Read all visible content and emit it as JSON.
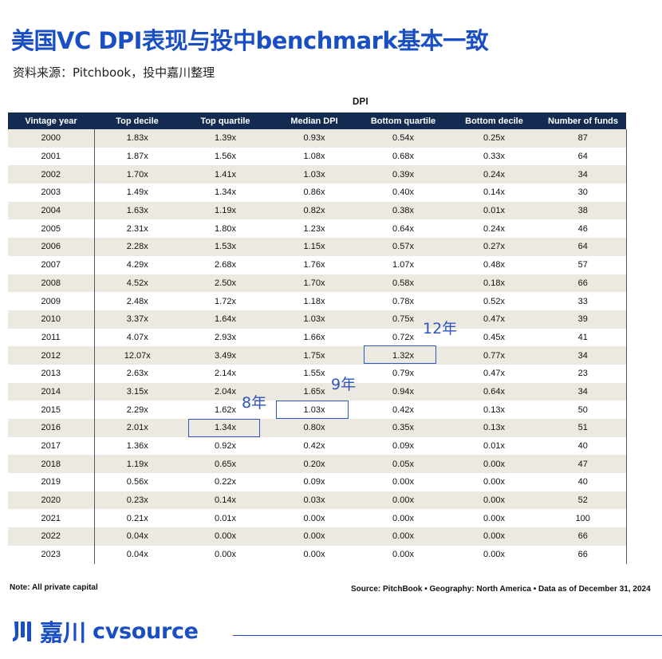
{
  "title": "美国VC DPI表现与投中benchmark基本一致",
  "subtitle": "资料来源：Pitchbook，投中嘉川整理",
  "table": {
    "caption": "DPI",
    "headers": [
      "Vintage year",
      "Top decile",
      "Top quartile",
      "Median DPI",
      "Bottom quartile",
      "Bottom decile",
      "Number of funds"
    ],
    "rows": [
      [
        "2000",
        "1.83x",
        "1.39x",
        "0.93x",
        "0.54x",
        "0.25x",
        "87"
      ],
      [
        "2001",
        "1.87x",
        "1.56x",
        "1.08x",
        "0.68x",
        "0.33x",
        "64"
      ],
      [
        "2002",
        "1.70x",
        "1.41x",
        "1.03x",
        "0.39x",
        "0.24x",
        "34"
      ],
      [
        "2003",
        "1.49x",
        "1.34x",
        "0.86x",
        "0.40x",
        "0.14x",
        "30"
      ],
      [
        "2004",
        "1.63x",
        "1.19x",
        "0.82x",
        "0.38x",
        "0.01x",
        "38"
      ],
      [
        "2005",
        "2.31x",
        "1.80x",
        "1.23x",
        "0.64x",
        "0.24x",
        "46"
      ],
      [
        "2006",
        "2.28x",
        "1.53x",
        "1.15x",
        "0.57x",
        "0.27x",
        "64"
      ],
      [
        "2007",
        "4.29x",
        "2.68x",
        "1.76x",
        "1.07x",
        "0.48x",
        "57"
      ],
      [
        "2008",
        "4.52x",
        "2.50x",
        "1.70x",
        "0.58x",
        "0.18x",
        "66"
      ],
      [
        "2009",
        "2.48x",
        "1.72x",
        "1.18x",
        "0.78x",
        "0.52x",
        "33"
      ],
      [
        "2010",
        "3.37x",
        "1.64x",
        "1.03x",
        "0.75x",
        "0.47x",
        "39"
      ],
      [
        "2011",
        "4.07x",
        "2.93x",
        "1.66x",
        "0.72x",
        "0.45x",
        "41"
      ],
      [
        "2012",
        "12.07x",
        "3.49x",
        "1.75x",
        "1.32x",
        "0.77x",
        "34"
      ],
      [
        "2013",
        "2.63x",
        "2.14x",
        "1.55x",
        "0.79x",
        "0.47x",
        "23"
      ],
      [
        "2014",
        "3.15x",
        "2.04x",
        "1.65x",
        "0.94x",
        "0.64x",
        "34"
      ],
      [
        "2015",
        "2.29x",
        "1.62x",
        "1.03x",
        "0.42x",
        "0.13x",
        "50"
      ],
      [
        "2016",
        "2.01x",
        "1.34x",
        "0.80x",
        "0.35x",
        "0.13x",
        "51"
      ],
      [
        "2017",
        "1.36x",
        "0.92x",
        "0.42x",
        "0.09x",
        "0.01x",
        "40"
      ],
      [
        "2018",
        "1.19x",
        "0.65x",
        "0.20x",
        "0.05x",
        "0.00x",
        "47"
      ],
      [
        "2019",
        "0.56x",
        "0.22x",
        "0.09x",
        "0.00x",
        "0.00x",
        "40"
      ],
      [
        "2020",
        "0.23x",
        "0.14x",
        "0.03x",
        "0.00x",
        "0.00x",
        "52"
      ],
      [
        "2021",
        "0.21x",
        "0.01x",
        "0.00x",
        "0.00x",
        "0.00x",
        "100"
      ],
      [
        "2022",
        "0.04x",
        "0.00x",
        "0.00x",
        "0.00x",
        "0.00x",
        "66"
      ],
      [
        "2023",
        "0.04x",
        "0.00x",
        "0.00x",
        "0.00x",
        "0.00x",
        "66"
      ]
    ]
  },
  "annotations": {
    "a12": "12年",
    "a9": "9年",
    "a8": "8年",
    "color": "#2f55c0"
  },
  "note": "Note: All private capital",
  "source": "Source: PitchBook • Geography: North America • Data as of December 31, 2024",
  "logo": {
    "cn": "嘉川",
    "en": "cvsource",
    "color": "#1a4fc4"
  }
}
